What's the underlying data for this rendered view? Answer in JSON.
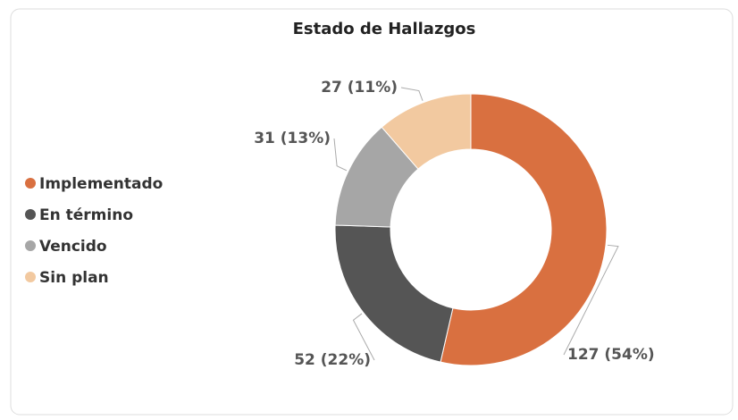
{
  "chart_data": {
    "type": "pie",
    "title": "Estado de Hallazgos",
    "categories": [
      "Implementado",
      "En término",
      "Vencido",
      "Sin plan"
    ],
    "values": [
      127,
      52,
      31,
      27
    ],
    "value_labels": [
      "127 (54%)",
      "52 (22%)",
      "31 (13%)",
      "27 (11%)"
    ],
    "colors": [
      "#d97040",
      "#555555",
      "#a6a6a6",
      "#f2c9a0"
    ],
    "donut": true,
    "legend": "left"
  }
}
